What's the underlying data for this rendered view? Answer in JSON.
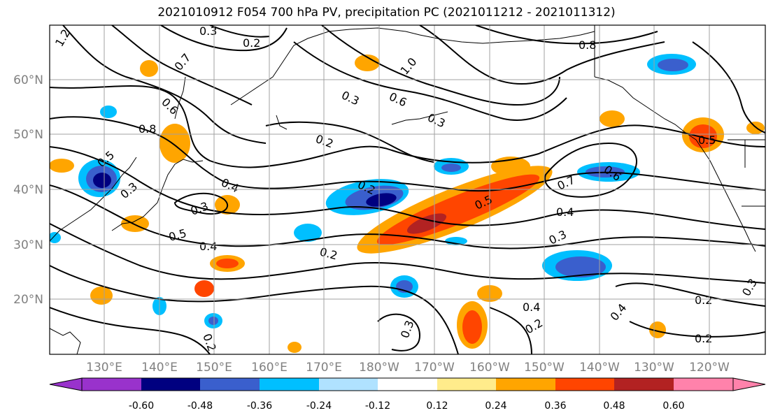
{
  "title": "2021010912 F054 700 hPa PV, precipitation PC (2021011212 - 2021011312)",
  "map": {
    "lat_labels": [
      "60°N",
      "50°N",
      "40°N",
      "30°N",
      "20°N"
    ],
    "lon_labels": [
      "130°E",
      "140°E",
      "150°E",
      "160°E",
      "170°E",
      "180°W",
      "170°W",
      "160°W",
      "150°W",
      "140°W",
      "130°W",
      "120°W"
    ],
    "contour_labels": [
      "1.2",
      "0.3",
      "0.2",
      "0.7",
      "1.0",
      "0.6",
      "0.8",
      "0.3",
      "0.6",
      "0.3",
      "0.2",
      "0.8",
      "0.5",
      "0.4",
      "0.6",
      "0.5",
      "0.2",
      "0.5",
      "0.7",
      "0.4",
      "0.3",
      "0.4",
      "0.3",
      "0.3",
      "0.5",
      "0.4",
      "0.2",
      "0.2",
      "0.3",
      "0.4",
      "0.2",
      "0.2",
      "0.2",
      "0.3"
    ]
  },
  "colorbar": {
    "colors": [
      "#9932cc",
      "#000080",
      "#3a5fcd",
      "#00bfff",
      "#b0e2ff",
      "#ffffff",
      "#ffec8b",
      "#ffa500",
      "#ff4500",
      "#b22222",
      "#ff82ab"
    ],
    "tick_labels": [
      "-0.60",
      "-0.48",
      "-0.36",
      "-0.24",
      "-0.12",
      "0.12",
      "0.24",
      "0.36",
      "0.48",
      "0.60"
    ]
  }
}
